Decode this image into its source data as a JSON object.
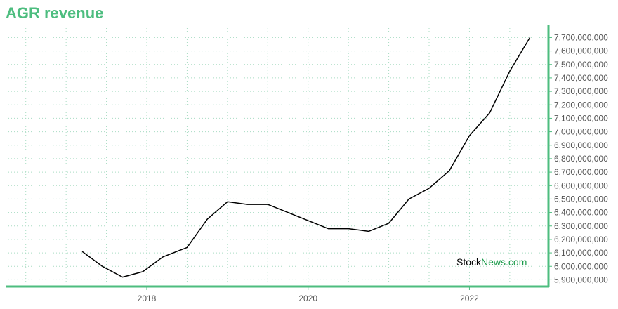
{
  "chart_data": {
    "type": "line",
    "title": "AGR revenue",
    "xlabel": "",
    "ylabel": "",
    "x": [
      2017.2,
      2017.45,
      2017.7,
      2017.95,
      2018.2,
      2018.5,
      2018.75,
      2019.0,
      2019.25,
      2019.5,
      2019.75,
      2020.0,
      2020.25,
      2020.5,
      2020.75,
      2021.0,
      2021.25,
      2021.5,
      2021.75,
      2022.0,
      2022.25,
      2022.5,
      2022.75
    ],
    "series": [
      {
        "values": [
          6110000000,
          6000000000,
          5920000000,
          5960000000,
          6070000000,
          6140000000,
          6350000000,
          6480000000,
          6460000000,
          6460000000,
          6400000000,
          6340000000,
          6280000000,
          6280000000,
          6260000000,
          6320000000,
          6500000000,
          6580000000,
          6710000000,
          6970000000,
          7140000000,
          7450000000,
          7700000000
        ],
        "color": "#000000"
      }
    ],
    "xlim": [
      2016.25,
      2022.98
    ],
    "ylim": [
      5850000000,
      7770000000
    ],
    "x_ticks": [
      2018,
      2020,
      2022
    ],
    "x_tick_labels": [
      "2018",
      "2020",
      "2022"
    ],
    "y_ticks": [
      5900000000,
      6000000000,
      6100000000,
      6200000000,
      6300000000,
      6400000000,
      6500000000,
      6600000000,
      6700000000,
      6800000000,
      6900000000,
      7000000000,
      7100000000,
      7200000000,
      7300000000,
      7400000000,
      7500000000,
      7600000000,
      7700000000
    ],
    "y_tick_labels": [
      "5,900,000,000",
      "6,000,000,000",
      "6,100,000,000",
      "6,200,000,000",
      "6,300,000,000",
      "6,400,000,000",
      "6,500,000,000",
      "6,600,000,000",
      "6,700,000,000",
      "6,800,000,000",
      "6,900,000,000",
      "7,000,000,000",
      "7,100,000,000",
      "7,200,000,000",
      "7,300,000,000",
      "7,400,000,000",
      "7,500,000,000",
      "7,600,000,000",
      "7,700,000,000"
    ],
    "y_axis_side": "right",
    "grid": true,
    "legend": "none",
    "colors": {
      "axis": "#4dbd7f",
      "grid": "#a8dcc2",
      "line": "#000000",
      "title": "#4dbd7f"
    }
  },
  "watermark": {
    "part1": "Stock",
    "part2": "News.com"
  }
}
